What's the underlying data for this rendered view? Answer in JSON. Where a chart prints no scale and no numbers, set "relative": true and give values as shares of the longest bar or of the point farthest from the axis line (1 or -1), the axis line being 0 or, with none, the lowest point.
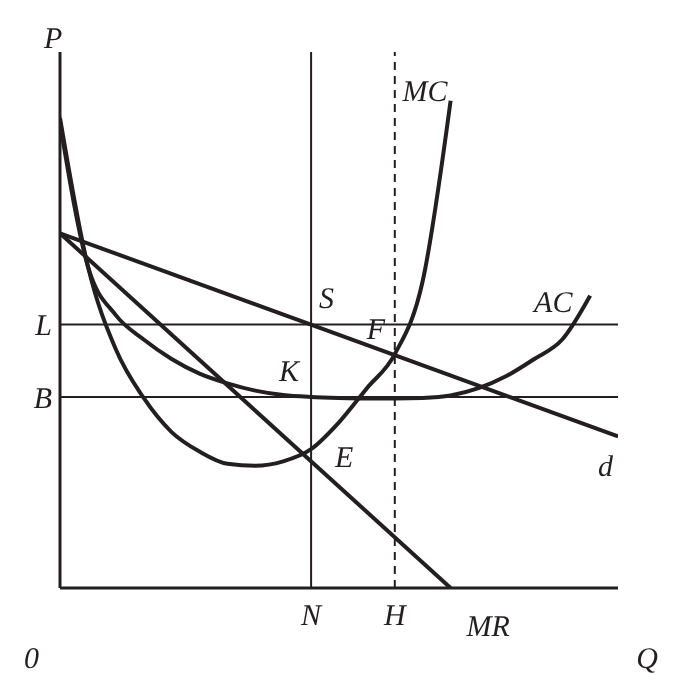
{
  "chart_data": {
    "type": "line",
    "relative": true,
    "xlabel": "Q",
    "ylabel": "P",
    "line_style": "solid",
    "marker": "none",
    "categories": [
      null,
      null,
      null,
      null,
      null,
      null,
      null,
      null,
      null,
      "N",
      null,
      null,
      "H",
      null,
      null,
      null,
      null,
      null,
      null,
      null,
      null
    ],
    "series": [
      {
        "name": "MC",
        "color": "#231f20",
        "values": [
          0.965,
          0.66,
          0.49,
          0.39,
          0.32,
          0.28,
          0.255,
          0.251,
          0.26,
          0.285,
          0.34,
          0.41,
          0.48,
          0.63,
          1,
          null,
          null,
          null,
          null,
          null,
          null
        ]
      },
      {
        "name": "AC",
        "color": "#231f20",
        "values": [
          0.954,
          0.66,
          0.56,
          0.51,
          0.47,
          0.44,
          0.42,
          0.405,
          0.396,
          0.392,
          0.39,
          0.389,
          0.389,
          0.39,
          0.395,
          0.41,
          0.435,
          0.47,
          0.51,
          0.6,
          null
        ]
      },
      {
        "name": "d",
        "color": "#231f20",
        "values": [
          0.728,
          null,
          null,
          null,
          null,
          null,
          null,
          null,
          null,
          null,
          null,
          null,
          null,
          null,
          null,
          null,
          null,
          null,
          null,
          null,
          0.311
        ]
      },
      {
        "name": "MR",
        "color": "#231f20",
        "values": [
          0.728,
          null,
          null,
          null,
          null,
          null,
          null,
          null,
          null,
          null,
          null,
          null,
          null,
          null,
          0,
          null,
          null,
          null,
          null,
          null,
          null
        ]
      }
    ],
    "ref_lines": [
      {
        "axis": "y",
        "value": 0.541,
        "label": "L",
        "color": "#231f20",
        "line_style": "solid"
      },
      {
        "axis": "y",
        "value": 0.392,
        "label": "B",
        "color": "#231f20",
        "line_style": "solid"
      },
      {
        "axis": "x",
        "value": "N",
        "color": "#231f20",
        "line_style": "solid"
      },
      {
        "axis": "x",
        "value": "H",
        "color": "#231f20",
        "line_style": "dashed"
      }
    ],
    "annotations": [
      "0",
      {
        "text": "S",
        "x": "N",
        "y": 0.541
      },
      {
        "text": "F",
        "x": "H",
        "y": 0.478
      },
      {
        "text": "K",
        "x": "N",
        "y": 0.392
      },
      {
        "text": "E",
        "x": "N",
        "y": 0.285
      }
    ]
  }
}
